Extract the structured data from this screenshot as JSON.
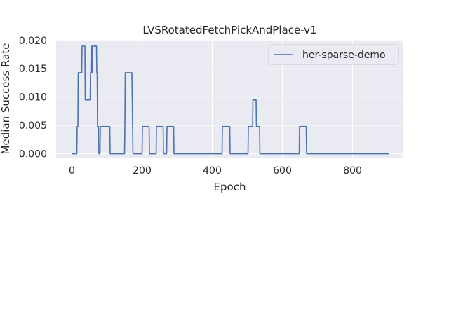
{
  "chart_data": {
    "type": "line",
    "title": "LVSRotatedFetchPickAndPlace-v1",
    "xlabel": "Epoch",
    "ylabel": "Median Success Rate",
    "xlim": [
      -45,
      945
    ],
    "ylim": [
      -0.0008,
      0.0201
    ],
    "x_ticks": [
      0,
      200,
      400,
      600,
      800
    ],
    "x_tick_labels": [
      "0",
      "200",
      "400",
      "600",
      "800"
    ],
    "y_ticks": [
      0.0,
      0.005,
      0.01,
      0.015,
      0.02
    ],
    "y_tick_labels": [
      "0.000",
      "0.005",
      "0.010",
      "0.015",
      "0.020"
    ],
    "grid": true,
    "legend_position": "top-right",
    "colors": {
      "plot_background": "#eaeaf2",
      "grid": "#ffffff",
      "text": "#262626",
      "series": "#4c72b0",
      "legend_border": "#cccccc"
    },
    "series": [
      {
        "name": "her-sparse-demo",
        "x": [
          0,
          14,
          15,
          17,
          18,
          19,
          20,
          28,
          29,
          30,
          31,
          37,
          38,
          39,
          40,
          52,
          53,
          54,
          55,
          56,
          57,
          58,
          59,
          60,
          61,
          62,
          63,
          64,
          70,
          71,
          72,
          73,
          76,
          77,
          78,
          80,
          81,
          87,
          88,
          89,
          108,
          109,
          110,
          150,
          151,
          152,
          153,
          170,
          171,
          172,
          173,
          174,
          175,
          200,
          201,
          202,
          220,
          221,
          222,
          240,
          241,
          242,
          260,
          261,
          262,
          270,
          271,
          272,
          290,
          291,
          292,
          298,
          299,
          300,
          428,
          429,
          430,
          450,
          451,
          452,
          502,
          503,
          504,
          515,
          516,
          517,
          525,
          526,
          527,
          535,
          536,
          537,
          648,
          649,
          650,
          668,
          669,
          670,
          903
        ],
        "values": [
          0,
          0,
          0.0048,
          0.0048,
          0.0143,
          0.0143,
          0.0143,
          0.0143,
          0.019,
          0.019,
          0.019,
          0.019,
          0.0095,
          0.0095,
          0.0095,
          0.0095,
          0.0143,
          0.0143,
          0.019,
          0.019,
          0.0143,
          0.0143,
          0.019,
          0.019,
          0.019,
          0.019,
          0.019,
          0.019,
          0.019,
          0.0143,
          0.0143,
          0.0048,
          0.0048,
          0,
          0,
          0,
          0.0048,
          0.0048,
          0.0048,
          0.0048,
          0.0048,
          0,
          0,
          0,
          0.0048,
          0.0143,
          0.0143,
          0.0143,
          0.0143,
          0.0095,
          0.0048,
          0,
          0,
          0,
          0.0048,
          0.0048,
          0.0048,
          0,
          0,
          0,
          0.0048,
          0.0048,
          0.0048,
          0,
          0,
          0,
          0.0048,
          0.0048,
          0.0048,
          0,
          0,
          0,
          0,
          0,
          0,
          0.0048,
          0.0048,
          0.0048,
          0,
          0,
          0,
          0.0048,
          0.0048,
          0.0048,
          0.0095,
          0.0095,
          0.0095,
          0.0048,
          0.0048,
          0.0048,
          0,
          0,
          0,
          0.0048,
          0.0048,
          0.0048,
          0,
          0,
          0
        ]
      }
    ]
  }
}
